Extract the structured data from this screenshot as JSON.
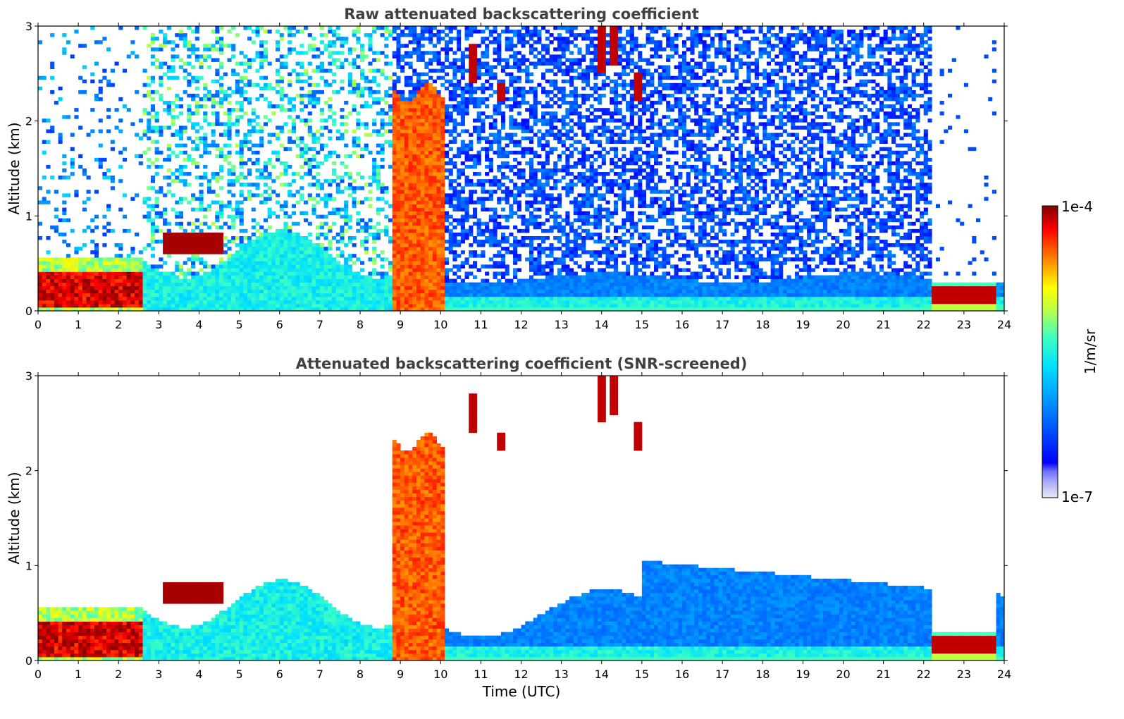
{
  "figure": {
    "shared_xlabel": "Time (UTC)",
    "colorbar": {
      "label": "1/m/sr",
      "max_label": "1e-4",
      "min_label": "1e-7",
      "vmin": 1e-07,
      "vmax": 0.0001,
      "scale": "log",
      "colormap": "jet",
      "low_end_colors": [
        "#e6e6fa",
        "#c8c8f0",
        "#a0a0ff",
        "#7070ff"
      ]
    }
  },
  "chart_data": [
    {
      "type": "heatmap",
      "title": "Raw attenuated backscattering coefficient",
      "xlabel": "",
      "ylabel": "Altitude (km)",
      "xlim": [
        0,
        24
      ],
      "ylim": [
        0,
        3
      ],
      "x_ticks": [
        "0",
        "1",
        "2",
        "3",
        "4",
        "5",
        "6",
        "7",
        "8",
        "9",
        "10",
        "11",
        "12",
        "13",
        "14",
        "15",
        "16",
        "17",
        "18",
        "19",
        "20",
        "21",
        "22",
        "23",
        "24"
      ],
      "y_ticks": [
        "0",
        "1",
        "2",
        "3"
      ],
      "features": [
        {
          "feature": "boundary layer aerosol (dark red)",
          "time_start": 0.0,
          "time_end": 2.6,
          "alt_bottom": 0.05,
          "alt_top": 0.4,
          "level": "~1e-4"
        },
        {
          "feature": "elevated aerosol layer",
          "time_start": 3.1,
          "time_end": 4.5,
          "alt_bottom": 0.6,
          "alt_top": 0.8,
          "level": "~1e-4"
        },
        {
          "feature": "mixed layer",
          "time_start": 3.0,
          "time_end": 8.8,
          "alt_bottom": 0.0,
          "alt_top": 0.7,
          "level": "~1e-5"
        },
        {
          "feature": "precipitation / thick cloud",
          "time_start": 8.8,
          "time_end": 10.1,
          "alt_bottom": 0.0,
          "alt_top": 2.4,
          "level": "~5e-5"
        },
        {
          "feature": "cirrus fragments",
          "time_start": 13.8,
          "time_end": 15.0,
          "alt_bottom": 2.2,
          "alt_top": 3.0,
          "level": "~1e-4"
        },
        {
          "feature": "clear boundary layer",
          "time_start": 10.1,
          "time_end": 22.2,
          "alt_bottom": 0.0,
          "alt_top": 0.8,
          "level": "~2e-6"
        },
        {
          "feature": "night-time stable layer",
          "time_start": 22.2,
          "time_end": 23.8,
          "alt_bottom": 0.05,
          "alt_top": 0.2,
          "level": "~1e-4"
        }
      ]
    },
    {
      "type": "heatmap",
      "title": "Attenuated backscattering coefficient (SNR-screened)",
      "xlabel": "Time (UTC)",
      "ylabel": "Altitude (km)",
      "xlim": [
        0,
        24
      ],
      "ylim": [
        0,
        3
      ],
      "x_ticks": [
        "0",
        "1",
        "2",
        "3",
        "4",
        "5",
        "6",
        "7",
        "8",
        "9",
        "10",
        "11",
        "12",
        "13",
        "14",
        "15",
        "16",
        "17",
        "18",
        "19",
        "20",
        "21",
        "22",
        "23",
        "24"
      ],
      "y_ticks": [
        "0",
        "1",
        "2",
        "3"
      ],
      "features": [
        {
          "feature": "boundary layer aerosol",
          "time_start": 0.0,
          "time_end": 2.6,
          "alt_bottom": 0.05,
          "alt_top": 0.5,
          "level": ">1e-4"
        },
        {
          "feature": "mixed layer",
          "time_start": 3.0,
          "time_end": 8.8,
          "alt_bottom": 0.0,
          "alt_top": 0.9,
          "level": "~1e-5"
        },
        {
          "feature": "precipitation / thick cloud",
          "time_start": 8.8,
          "time_end": 10.1,
          "alt_bottom": 0.0,
          "alt_top": 2.4,
          "level": "~5e-5"
        },
        {
          "feature": "screened boundary layer",
          "time_start": 10.1,
          "time_end": 22.2,
          "alt_bottom": 0.0,
          "alt_top": 1.1,
          "level": "~2e-6"
        },
        {
          "feature": "night-time stable layer",
          "time_start": 22.2,
          "time_end": 23.8,
          "alt_bottom": 0.05,
          "alt_top": 0.2,
          "level": ">1e-4"
        }
      ]
    }
  ]
}
